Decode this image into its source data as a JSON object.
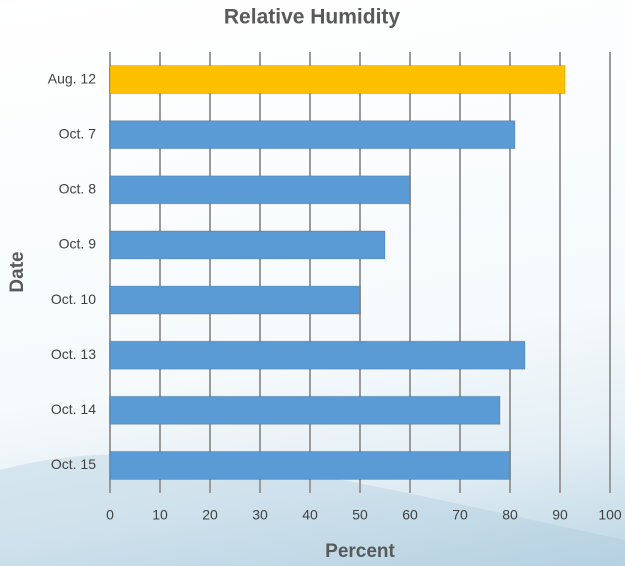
{
  "chart_data": {
    "type": "hbar",
    "title": "Relative Humidity",
    "x_label": "Percent",
    "y_label": "Date",
    "categories": [
      "Aug. 12",
      "Oct. 7",
      "Oct. 8",
      "Oct. 9",
      "Oct. 10",
      "Oct. 13",
      "Oct. 14",
      "Oct. 15"
    ],
    "values": [
      91,
      81,
      60,
      55,
      50,
      83,
      78,
      80
    ],
    "colors": [
      "#ffc000",
      "#5b9bd5",
      "#5b9bd5",
      "#5b9bd5",
      "#5b9bd5",
      "#5b9bd5",
      "#5b9bd5",
      "#5b9bd5"
    ],
    "xlim": [
      0,
      100
    ],
    "xticks": [
      0,
      10,
      20,
      30,
      40,
      50,
      60,
      70,
      80,
      90,
      100
    ],
    "grid": true
  }
}
